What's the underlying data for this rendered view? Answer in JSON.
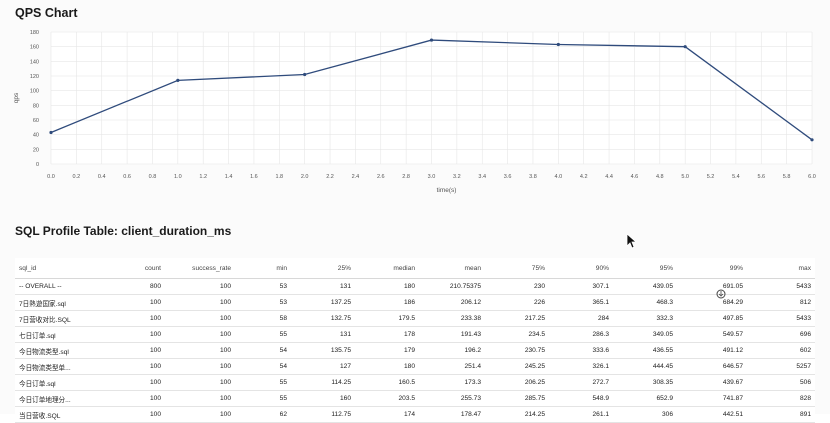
{
  "chart_title": "QPS Chart",
  "chart_data": {
    "type": "line",
    "title": "QPS Chart",
    "xlabel": "time(s)",
    "ylabel": "qps",
    "x": [
      0,
      1,
      2,
      3,
      4,
      5,
      6
    ],
    "series": [
      {
        "values": [
          43,
          114,
          122,
          169,
          163,
          160,
          33
        ]
      }
    ],
    "xlim": [
      0,
      6
    ],
    "ylim": [
      0,
      180
    ],
    "x_ticks": [
      "0.0",
      "0.2",
      "0.4",
      "0.6",
      "0.8",
      "1.0",
      "1.2",
      "1.4",
      "1.6",
      "1.8",
      "2.0",
      "2.2",
      "2.4",
      "2.6",
      "2.8",
      "3.0",
      "3.2",
      "3.4",
      "3.6",
      "3.8",
      "4.0",
      "4.2",
      "4.4",
      "4.6",
      "4.8",
      "5.0",
      "5.2",
      "5.4",
      "5.6",
      "5.8",
      "6.0"
    ],
    "y_ticks": [
      "0",
      "20",
      "40",
      "60",
      "80",
      "100",
      "120",
      "140",
      "160",
      "180"
    ],
    "grid": true,
    "line_color": "#2f4b7c"
  },
  "table": {
    "title": "SQL Profile Table: client_duration_ms",
    "columns": [
      "sql_id",
      "count",
      "success_rate",
      "min",
      "25%",
      "median",
      "mean",
      "75%",
      "90%",
      "95%",
      "99%",
      "max"
    ],
    "rows": [
      [
        "-- OVERALL --",
        "800",
        "100",
        "53",
        "131",
        "180",
        "210.75375",
        "230",
        "307.1",
        "439.05",
        "691.05",
        "5433"
      ],
      [
        "7日熱遊国家.sql",
        "100",
        "100",
        "53",
        "137.25",
        "186",
        "206.12",
        "226",
        "365.1",
        "468.3",
        "684.29",
        "812"
      ],
      [
        "7日营收对比.SQL",
        "100",
        "100",
        "58",
        "132.75",
        "179.5",
        "233.38",
        "217.25",
        "284",
        "332.3",
        "497.85",
        "5433"
      ],
      [
        "七日订单.sql",
        "100",
        "100",
        "55",
        "131",
        "178",
        "191.43",
        "234.5",
        "286.3",
        "349.05",
        "549.57",
        "696"
      ],
      [
        "今日物流类型.sql",
        "100",
        "100",
        "54",
        "135.75",
        "179",
        "196.2",
        "230.75",
        "333.6",
        "436.55",
        "491.12",
        "602"
      ],
      [
        "今日物流类型单...",
        "100",
        "100",
        "54",
        "127",
        "180",
        "251.4",
        "245.25",
        "326.1",
        "444.45",
        "646.57",
        "5257"
      ],
      [
        "今日订单.sql",
        "100",
        "100",
        "55",
        "114.25",
        "160.5",
        "173.3",
        "206.25",
        "272.7",
        "308.35",
        "439.67",
        "506"
      ],
      [
        "今日订单地理分...",
        "100",
        "100",
        "55",
        "160",
        "203.5",
        "255.73",
        "285.75",
        "548.9",
        "652.9",
        "741.87",
        "828"
      ],
      [
        "当日营收.SQL",
        "100",
        "100",
        "62",
        "112.75",
        "174",
        "178.47",
        "214.25",
        "261.1",
        "306",
        "442.51",
        "891"
      ]
    ]
  }
}
